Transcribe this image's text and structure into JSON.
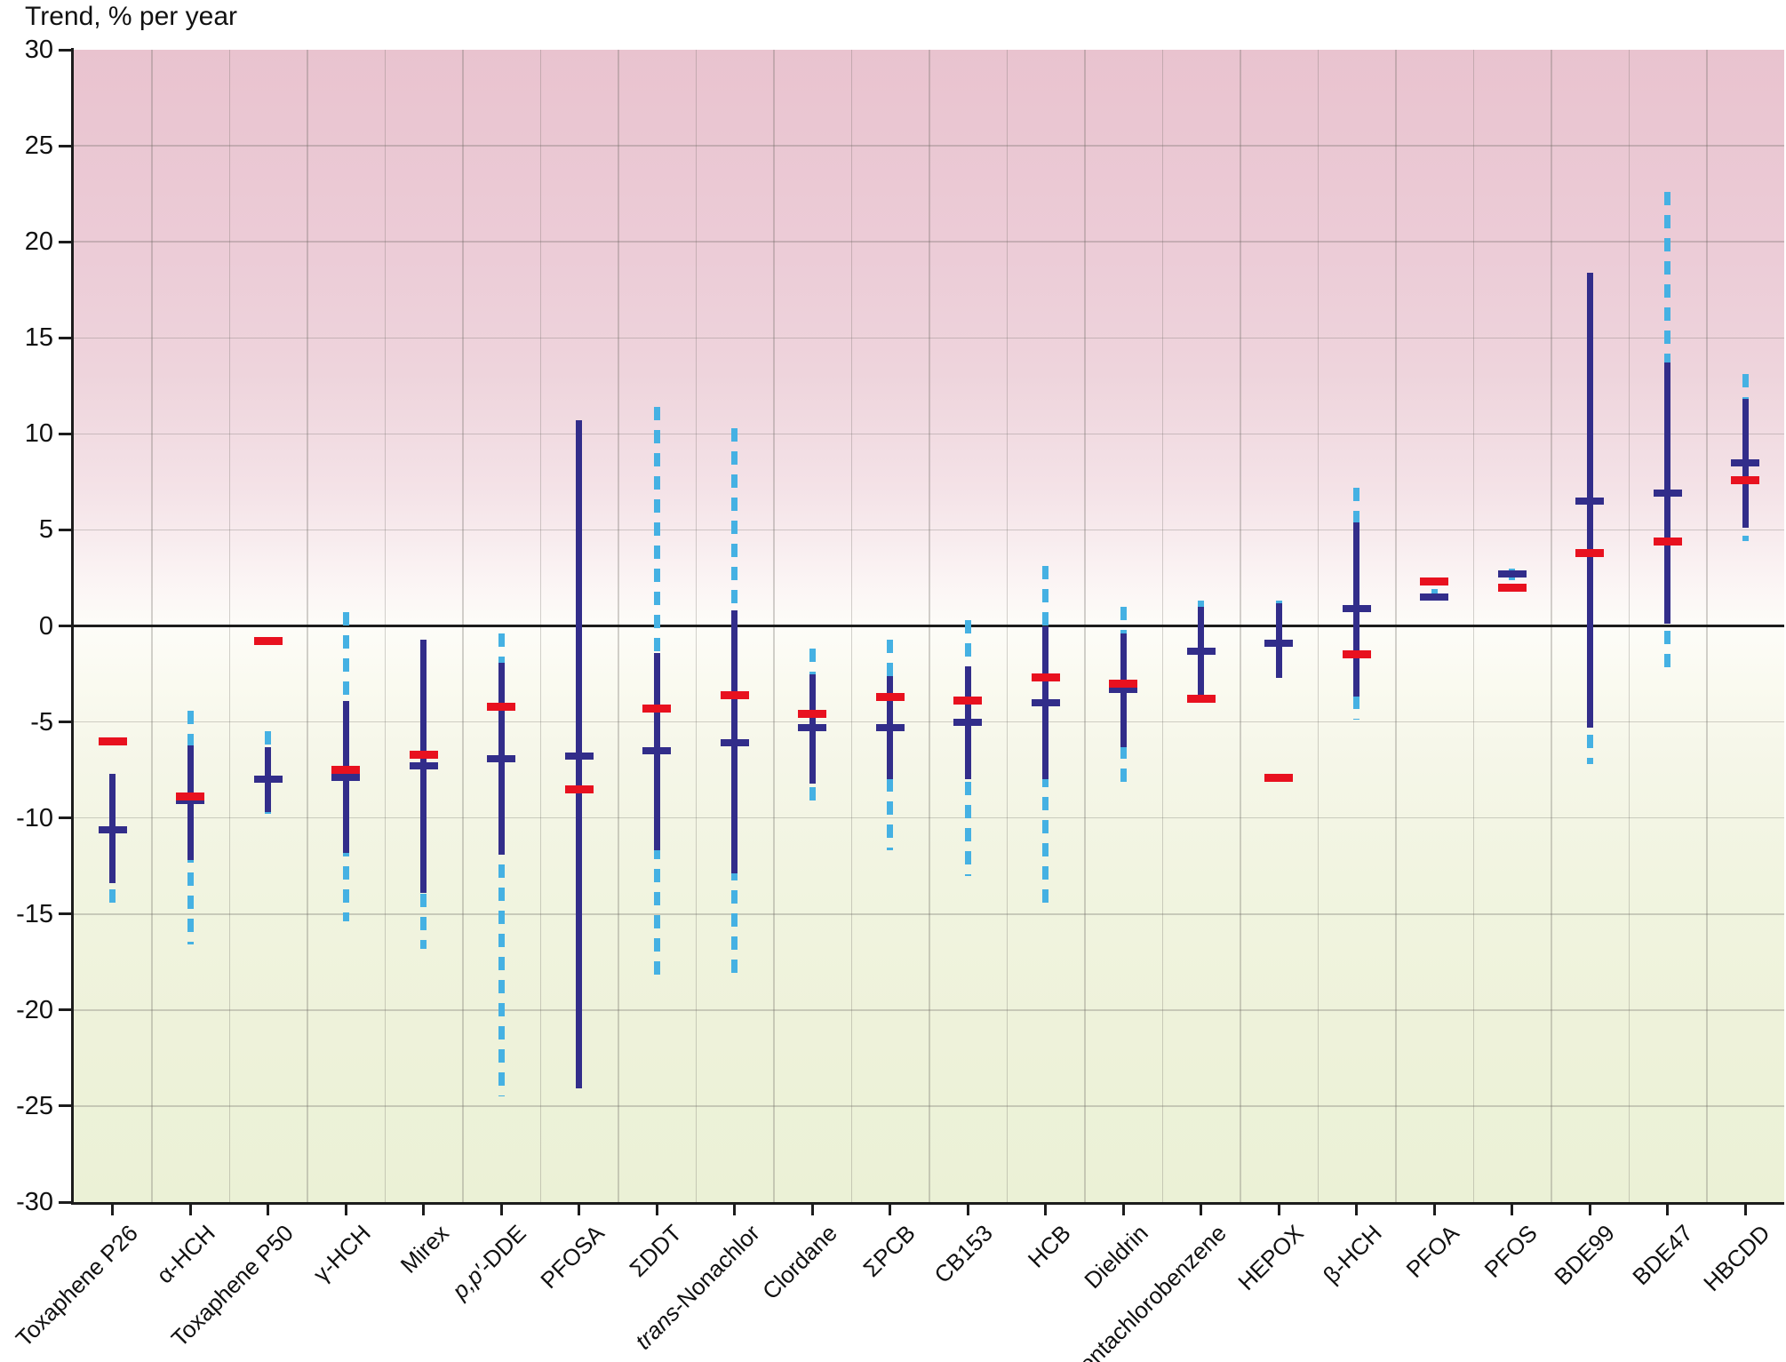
{
  "title": "Trend, % per year",
  "colors": {
    "navy": "#322d8a",
    "red": "#e8111f",
    "dashed_blue": "#45b1e3",
    "axis": "#1c1c1c",
    "bg_top_pink": "#e9c3cf",
    "bg_bottom_green": "#ebf1d6"
  },
  "y_axis": {
    "min": -30,
    "max": 30,
    "tick_step": 5,
    "tick_labels": [
      "30",
      "25",
      "20",
      "15",
      "10",
      "5",
      "0",
      "-5",
      "-10",
      "-15",
      "-20",
      "-25",
      "-30"
    ],
    "tick_values": [
      30,
      25,
      20,
      15,
      10,
      5,
      0,
      -5,
      -10,
      -15,
      -20,
      -25,
      -30
    ]
  },
  "chart_data": {
    "type": "error-bar-comparison",
    "title": "Trend, % per year",
    "ylabel": "Trend, % per year",
    "ylim": [
      -30,
      30
    ],
    "grid": true,
    "marker_semantics": {
      "navy_tick": "trend estimate, % per year",
      "red_tick": "comparison trend estimate, % per year",
      "solid_navy_line": "confidence interval (solid)",
      "dashed_blue_line": "extended confidence interval (dashed)"
    },
    "points": [
      {
        "label": "Toxaphene P26",
        "label_parts": [
          [
            "Toxaphene P26",
            false
          ]
        ],
        "navy": -10.6,
        "red": -6.0,
        "solid": [
          -13.4,
          -7.7
        ],
        "dashed": [
          -14.5,
          -7.7
        ]
      },
      {
        "label": "α-HCH",
        "label_parts": [
          [
            "α-HCH",
            false
          ]
        ],
        "navy": -9.1,
        "red": -8.9,
        "solid": [
          -12.2,
          -6.2
        ],
        "dashed": [
          -16.6,
          -4.4
        ]
      },
      {
        "label": "Toxaphene P50",
        "label_parts": [
          [
            "Toxaphene P50",
            false
          ]
        ],
        "navy": -8.0,
        "red": -0.8,
        "solid": [
          -9.7,
          -6.3
        ],
        "dashed": [
          -9.9,
          -5.5
        ]
      },
      {
        "label": "γ-HCH",
        "label_parts": [
          [
            "γ-HCH",
            false
          ]
        ],
        "navy": -7.9,
        "red": -7.5,
        "solid": [
          -11.8,
          -3.9
        ],
        "dashed": [
          -15.4,
          0.7
        ]
      },
      {
        "label": "Mirex",
        "label_parts": [
          [
            "Mirex",
            false
          ]
        ],
        "navy": -7.3,
        "red": -6.7,
        "solid": [
          -13.9,
          -0.7
        ],
        "dashed": [
          -16.8,
          -0.7
        ]
      },
      {
        "label": "p,p′-DDE",
        "label_parts": [
          [
            "p,p′-",
            true
          ],
          [
            "DDE",
            false
          ]
        ],
        "navy": -6.9,
        "red": -4.2,
        "solid": [
          -11.9,
          -1.9
        ],
        "dashed": [
          -24.5,
          -0.4
        ]
      },
      {
        "label": "PFOSA",
        "label_parts": [
          [
            "PFOSA",
            false
          ]
        ],
        "navy": -6.8,
        "red": -8.5,
        "solid": [
          -24.1,
          10.7
        ],
        "dashed": null
      },
      {
        "label": "ΣDDT",
        "label_parts": [
          [
            "ΣDDT",
            false
          ]
        ],
        "navy": -6.5,
        "red": -4.3,
        "solid": [
          -11.7,
          -1.4
        ],
        "dashed": [
          -18.3,
          11.4
        ]
      },
      {
        "label": "trans-Nonachlor",
        "label_parts": [
          [
            "trans",
            true
          ],
          [
            "-Nonachlor",
            false
          ]
        ],
        "navy": -6.1,
        "red": -3.6,
        "solid": [
          -12.9,
          0.8
        ],
        "dashed": [
          -18.3,
          10.3
        ]
      },
      {
        "label": "Clordane",
        "label_parts": [
          [
            "Clordane",
            false
          ]
        ],
        "navy": -5.3,
        "red": -4.6,
        "solid": [
          -8.2,
          -2.5
        ],
        "dashed": [
          -9.6,
          -1.2
        ]
      },
      {
        "label": "ΣPCB",
        "label_parts": [
          [
            "ΣPCB",
            false
          ]
        ],
        "navy": -5.3,
        "red": -3.7,
        "solid": [
          -8.0,
          -2.6
        ],
        "dashed": [
          -11.7,
          -0.7
        ]
      },
      {
        "label": "CB153",
        "label_parts": [
          [
            "CB153",
            false
          ]
        ],
        "navy": -5.0,
        "red": -3.9,
        "solid": [
          -8.0,
          -2.1
        ],
        "dashed": [
          -13.0,
          0.3
        ]
      },
      {
        "label": "HCB",
        "label_parts": [
          [
            "HCB",
            false
          ]
        ],
        "navy": -4.0,
        "red": -2.7,
        "solid": [
          -8.0,
          0.0
        ],
        "dashed": [
          -14.7,
          3.1
        ]
      },
      {
        "label": "Dieldrin",
        "label_parts": [
          [
            "Dieldrin",
            false
          ]
        ],
        "navy": -3.3,
        "red": -3.0,
        "solid": [
          -6.3,
          -0.4
        ],
        "dashed": [
          -8.3,
          1.0
        ]
      },
      {
        "label": "Pentachlorobenzene",
        "label_parts": [
          [
            "Pentachlorobenzene",
            false
          ]
        ],
        "navy": -1.3,
        "red": -3.8,
        "solid": [
          -3.8,
          1.0
        ],
        "dashed": [
          -3.8,
          1.3
        ]
      },
      {
        "label": "HEPOX",
        "label_parts": [
          [
            "HEPOX",
            false
          ]
        ],
        "navy": -0.9,
        "red": -7.9,
        "solid": [
          -2.7,
          1.2
        ],
        "dashed": [
          -2.7,
          1.3
        ]
      },
      {
        "label": "β-HCH",
        "label_parts": [
          [
            "β-HCH",
            false
          ]
        ],
        "navy": 0.9,
        "red": -1.5,
        "solid": [
          -3.7,
          5.4
        ],
        "dashed": [
          -4.9,
          7.2
        ]
      },
      {
        "label": "PFOA",
        "label_parts": [
          [
            "PFOA",
            false
          ]
        ],
        "navy": 1.5,
        "red": 2.3,
        "solid": [
          1.3,
          1.7
        ],
        "dashed": [
          1.3,
          1.9
        ]
      },
      {
        "label": "PFOS",
        "label_parts": [
          [
            "PFOS",
            false
          ]
        ],
        "navy": 2.7,
        "red": 2.0,
        "solid": [
          2.5,
          2.9
        ],
        "dashed": [
          2.4,
          3.0
        ]
      },
      {
        "label": "BDE99",
        "label_parts": [
          [
            "BDE99",
            false
          ]
        ],
        "navy": 6.5,
        "red": 3.8,
        "solid": [
          -5.3,
          18.4
        ],
        "dashed": [
          -7.2,
          18.4
        ]
      },
      {
        "label": "BDE47",
        "label_parts": [
          [
            "BDE47",
            false
          ]
        ],
        "navy": 6.9,
        "red": 4.4,
        "solid": [
          0.1,
          13.7
        ],
        "dashed": [
          -2.5,
          22.6
        ]
      },
      {
        "label": "HBCDD",
        "label_parts": [
          [
            "HBCDD",
            false
          ]
        ],
        "navy": 8.5,
        "red": 7.6,
        "solid": [
          5.1,
          11.8
        ],
        "dashed": [
          4.4,
          13.1
        ]
      }
    ]
  }
}
